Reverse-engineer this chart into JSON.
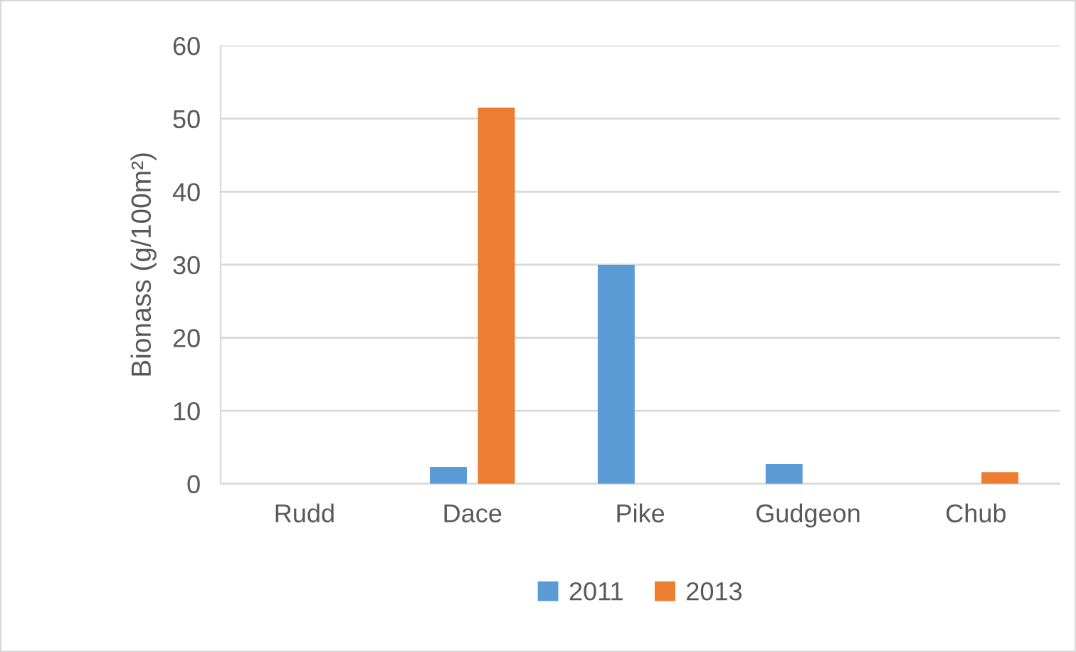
{
  "chart_data": {
    "type": "bar",
    "ylabel": "Bionass (g/100m²)",
    "categories": [
      "Rudd",
      "Dace",
      "Pike",
      "Gudgeon",
      "Chub"
    ],
    "series": [
      {
        "name": "2011",
        "color": "#5b9bd5",
        "values": [
          0,
          2.3,
          30.0,
          2.7,
          0
        ]
      },
      {
        "name": "2013",
        "color": "#ed7d31",
        "values": [
          0,
          51.5,
          0,
          0,
          1.6
        ]
      }
    ],
    "ylim": [
      0,
      60
    ],
    "yticks": [
      0,
      10,
      20,
      30,
      40,
      50,
      60
    ],
    "grid": "y",
    "legend": "bottom"
  }
}
